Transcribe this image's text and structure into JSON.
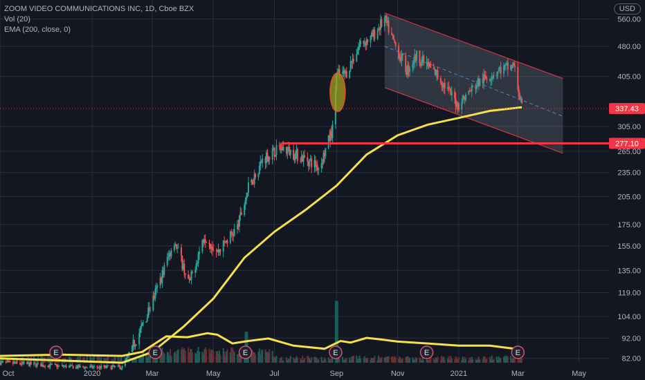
{
  "legend": {
    "title": "ZOOM VIDEO COMMUNICATIONS INC, 1D, Cboe BZX",
    "vol": "Vol (20)",
    "ema": "EMA (200, close, 0)"
  },
  "currency_button": "USD",
  "colors": {
    "background": "#131722",
    "grid": "#2a2e39",
    "up": "#26a69a",
    "down": "#ef5350",
    "ema": "#f5e14b",
    "price_line": "#f23645",
    "support_line": "#f23645",
    "channel_fill": "#7d8596",
    "ellipse_fill": "#a5a01c",
    "ellipse_stroke": "#e0502e",
    "axis_text": "#b2b5be"
  },
  "chart_data": {
    "type": "candlestick",
    "y_scale": "log",
    "ylim": [
      80,
      600
    ],
    "y_ticks": [
      82,
      92,
      104,
      119,
      135,
      155,
      175,
      205,
      235,
      265,
      305,
      405,
      480,
      560
    ],
    "y_tick_labels": [
      "82.00",
      "92.00",
      "104.00",
      "119.00",
      "135.00",
      "155.00",
      "175.00",
      "205.00",
      "235.00",
      "265.00",
      "305.00",
      "405.00",
      "480.00",
      "560.00"
    ],
    "x_ticks": [
      "Oct",
      "2020",
      "Mar",
      "May",
      "Jul",
      "Sep",
      "Nov",
      "2021",
      "Mar",
      "May"
    ],
    "x_range": [
      "2019-10-01",
      "2021-05-31"
    ],
    "close_anchors": [
      [
        "2019-10-01",
        80
      ],
      [
        "2019-12-20",
        78
      ],
      [
        "2020-01-31",
        78
      ],
      [
        "2020-02-20",
        98
      ],
      [
        "2020-03-05",
        120
      ],
      [
        "2020-03-23",
        160
      ],
      [
        "2020-04-07",
        125
      ],
      [
        "2020-04-22",
        165
      ],
      [
        "2020-05-05",
        150
      ],
      [
        "2020-05-25",
        172
      ],
      [
        "2020-06-05",
        215
      ],
      [
        "2020-06-20",
        255
      ],
      [
        "2020-07-08",
        270
      ],
      [
        "2020-07-20",
        262
      ],
      [
        "2020-08-06",
        250
      ],
      [
        "2020-08-15",
        242
      ],
      [
        "2020-08-28",
        300
      ],
      [
        "2020-09-01",
        410
      ],
      [
        "2020-09-10",
        410
      ],
      [
        "2020-09-25",
        490
      ],
      [
        "2020-10-05",
        500
      ],
      [
        "2020-10-19",
        560
      ],
      [
        "2020-10-30",
        480
      ],
      [
        "2020-11-10",
        420
      ],
      [
        "2020-11-20",
        455
      ],
      [
        "2020-12-10",
        410
      ],
      [
        "2020-12-31",
        345
      ],
      [
        "2021-01-20",
        390
      ],
      [
        "2021-02-10",
        420
      ],
      [
        "2021-02-25",
        430
      ],
      [
        "2021-03-05",
        337.43
      ]
    ],
    "ema_200": [
      [
        "2019-10-01",
        82
      ],
      [
        "2019-12-01",
        81
      ],
      [
        "2020-01-31",
        80
      ],
      [
        "2020-03-01",
        85
      ],
      [
        "2020-04-01",
        98
      ],
      [
        "2020-05-01",
        115
      ],
      [
        "2020-06-01",
        145
      ],
      [
        "2020-07-01",
        168
      ],
      [
        "2020-08-01",
        190
      ],
      [
        "2020-09-01",
        218
      ],
      [
        "2020-10-01",
        260
      ],
      [
        "2020-11-01",
        290
      ],
      [
        "2020-12-01",
        308
      ],
      [
        "2021-01-01",
        320
      ],
      [
        "2021-02-01",
        333
      ],
      [
        "2021-03-05",
        340
      ]
    ],
    "volume_ma": [
      [
        "2019-10-01",
        0.22
      ],
      [
        "2019-12-01",
        0.26
      ],
      [
        "2020-01-31",
        0.22
      ],
      [
        "2020-02-20",
        0.35
      ],
      [
        "2020-03-15",
        0.85
      ],
      [
        "2020-04-05",
        0.82
      ],
      [
        "2020-04-25",
        0.95
      ],
      [
        "2020-05-05",
        0.9
      ],
      [
        "2020-05-20",
        0.62
      ],
      [
        "2020-06-05",
        0.7
      ],
      [
        "2020-06-25",
        0.78
      ],
      [
        "2020-07-20",
        0.55
      ],
      [
        "2020-08-20",
        0.45
      ],
      [
        "2020-09-05",
        0.7
      ],
      [
        "2020-09-15",
        0.65
      ],
      [
        "2020-10-01",
        0.8
      ],
      [
        "2020-10-15",
        0.75
      ],
      [
        "2020-11-01",
        0.68
      ],
      [
        "2020-12-01",
        0.62
      ],
      [
        "2021-01-01",
        0.55
      ],
      [
        "2021-02-01",
        0.55
      ],
      [
        "2021-03-05",
        0.42
      ]
    ],
    "earnings_dates": [
      "2019-11-26",
      "2020-03-04",
      "2020-06-02",
      "2020-08-31",
      "2020-11-30",
      "2021-03-01"
    ],
    "earnings_label": "E",
    "current_price": 337.43,
    "current_price_label": "337.43",
    "support_level": 277.1,
    "support_label": "277.10",
    "support_start": "2020-07-08",
    "channel": {
      "start": "2020-10-19",
      "end": "2021-04-15",
      "upper_start": 580,
      "upper_end": 400,
      "lower_start": 380,
      "lower_end": 262,
      "mid_start": 480,
      "mid_end": 323
    },
    "ellipse": {
      "date": "2020-08-31",
      "price": 370
    }
  }
}
